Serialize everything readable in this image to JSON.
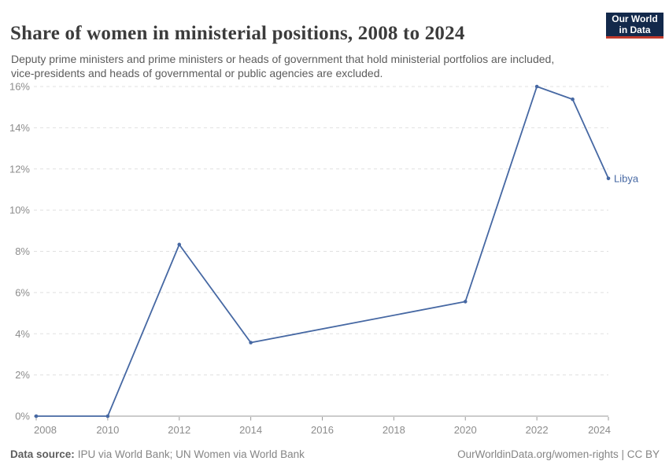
{
  "header": {
    "title": "Share of women in ministerial positions, 2008 to 2024",
    "subtitle": "Deputy prime ministers and prime ministers or heads of government that hold ministerial portfolios are included, vice-presidents and heads of governmental or public agencies are excluded.",
    "logo": {
      "line1": "Our World",
      "line2": "in Data",
      "bg_color": "#13294b",
      "accent_color": "#c0392b"
    }
  },
  "chart_data": {
    "type": "line",
    "title": "Share of women in ministerial positions, 2008 to 2024",
    "xlabel": "",
    "ylabel": "",
    "x": [
      2008,
      2010,
      2012,
      2014,
      2020,
      2022,
      2023,
      2024
    ],
    "series": [
      {
        "name": "Libya",
        "color": "#4668a3",
        "values": [
          0,
          0,
          8.33,
          3.57,
          5.56,
          16.0,
          15.38,
          11.54
        ]
      }
    ],
    "xlim": [
      2008,
      2024
    ],
    "ylim": [
      0,
      16
    ],
    "xticks": [
      2008,
      2010,
      2012,
      2014,
      2016,
      2018,
      2020,
      2022,
      2024
    ],
    "yticks": [
      0,
      2,
      4,
      6,
      8,
      10,
      12,
      14,
      16
    ],
    "ytick_suffix": "%",
    "grid": "horizontal-dashed",
    "legend": "series name labeled at line end",
    "colors": {
      "grid": "#e0e0e0",
      "axis": "#9a9a9a",
      "tick_label": "#8c8c8c"
    }
  },
  "footer": {
    "datasource_label": "Data source:",
    "datasource_value": "IPU via World Bank; UN Women via World Bank",
    "right_text": "OurWorldinData.org/women-rights | CC BY"
  }
}
